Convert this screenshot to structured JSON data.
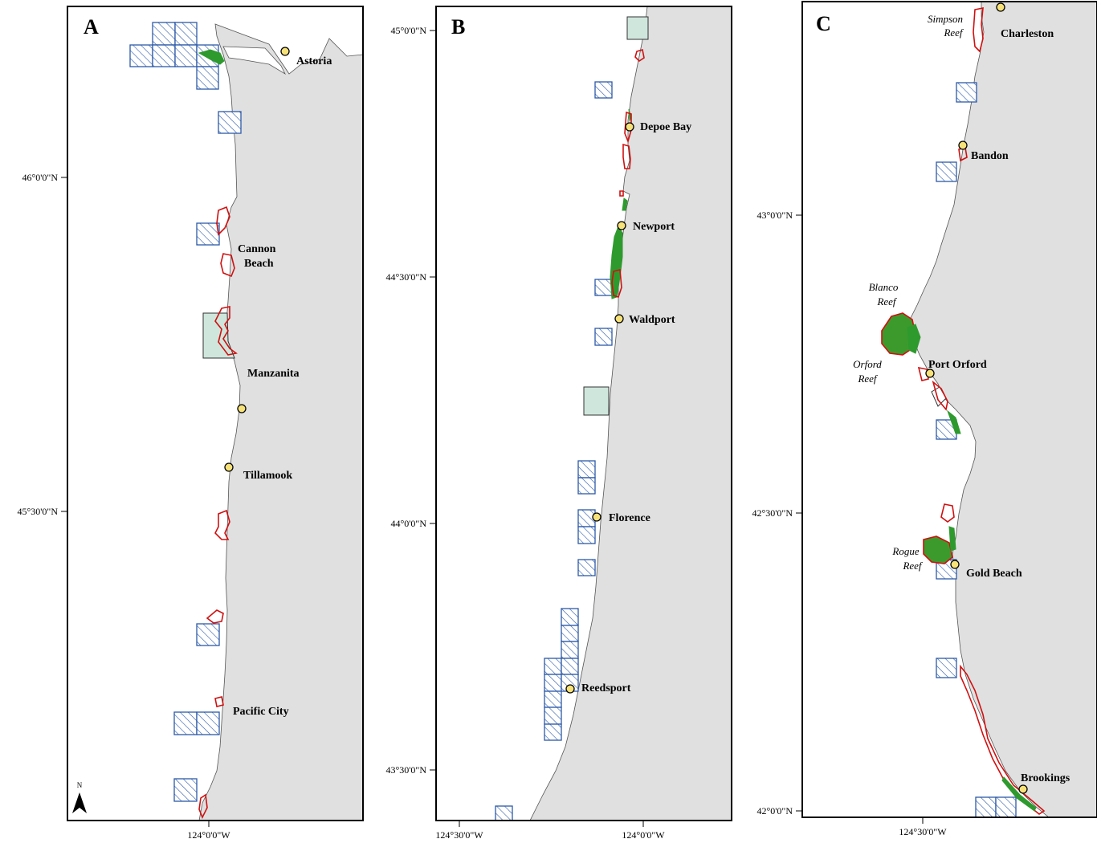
{
  "panels": [
    {
      "id": "A",
      "letter": "A",
      "lat_ticks": [
        "46°0'0\"N",
        "45°30'0\"N"
      ],
      "lon_ticks": [
        "124°0'0\"W"
      ],
      "towns": [
        "Astoria",
        "Cannon",
        "Beach",
        "Manzanita",
        "Tillamook",
        "Pacific City"
      ],
      "north_arrow": "N"
    },
    {
      "id": "B",
      "letter": "B",
      "lat_ticks": [
        "45°0'0\"N",
        "44°30'0\"N",
        "44°0'0\"N",
        "43°30'0\"N"
      ],
      "lon_ticks": [
        "124°30'0\"W",
        "124°0'0\"W"
      ],
      "towns": [
        "Depoe Bay",
        "Newport",
        "Waldport",
        "Florence",
        "Reedsport"
      ]
    },
    {
      "id": "C",
      "letter": "C",
      "lat_ticks": [
        "43°0'0\"N",
        "42°30'0\"N",
        "42°0'0\"N"
      ],
      "lon_ticks": [
        "124°30'0\"W"
      ],
      "towns": [
        "Charleston",
        "Bandon",
        "Port Orford",
        "Gold Beach",
        "Brookings"
      ],
      "reefs": [
        "Simpson",
        "Reef",
        "Blanco",
        "Reef",
        "Orford",
        "Reef",
        "Rogue",
        "Reef"
      ]
    }
  ],
  "colors": {
    "land": "#e0e0e0",
    "hatch": "#2d5aa8",
    "reserve": "#cfe6dc",
    "reef_outline": "#d01010",
    "kelp": "#2e9a2e",
    "town": "#f7e27a"
  },
  "icons": [
    "north-arrow-icon",
    "town-marker-icon"
  ]
}
